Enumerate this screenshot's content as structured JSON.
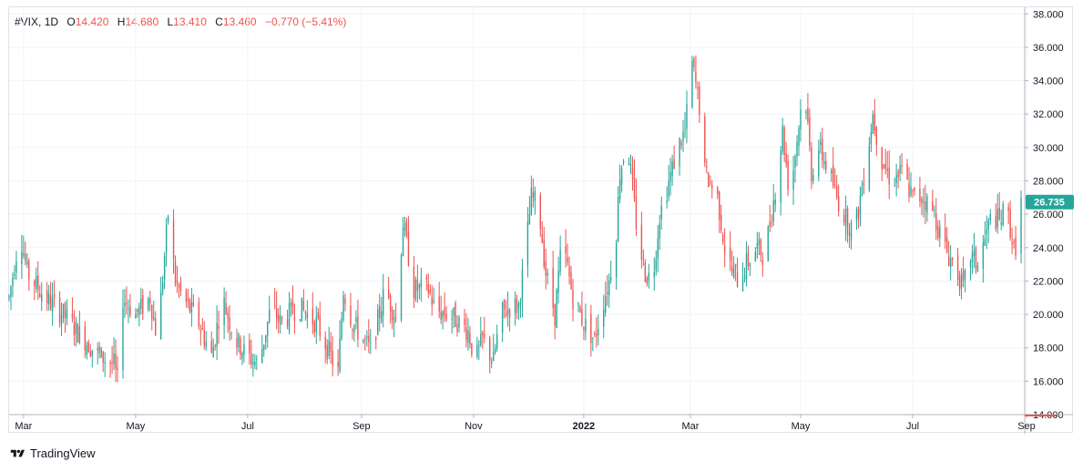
{
  "legend": {
    "symbol": "#VIX",
    "interval": "1D",
    "open_label": "O",
    "open": "14.420",
    "high_label": "H",
    "high": "14.680",
    "low_label": "L",
    "low": "13.410",
    "close_label": "C",
    "close": "13.460",
    "change": "−0.770 (−5.41%)"
  },
  "brand": {
    "name": "TradingView"
  },
  "colors": {
    "up": "#26a69a",
    "down": "#ef5350",
    "grid": "#f0f3fa",
    "axis": "#b2b5be",
    "text": "#131722"
  },
  "chart_data": {
    "type": "candlestick",
    "series_name": "#VIX",
    "interval": "1D",
    "last_price_label": "26.735",
    "current_price_label": "14.000",
    "y_axis": {
      "range": [
        14,
        38.4
      ],
      "ticks": [
        "14.000",
        "16.000",
        "18.000",
        "20.000",
        "22.000",
        "24.000",
        "26.000",
        "28.000",
        "30.000",
        "32.000",
        "34.000",
        "36.000",
        "38.000"
      ]
    },
    "x_axis": {
      "labels": [
        {
          "label": "Mar",
          "day": 8,
          "bold": false
        },
        {
          "label": "May",
          "day": 70,
          "bold": false
        },
        {
          "label": "Jul",
          "day": 132,
          "bold": false
        },
        {
          "label": "Sep",
          "day": 195,
          "bold": false
        },
        {
          "label": "Nov",
          "day": 257,
          "bold": false
        },
        {
          "label": "2022",
          "day": 318,
          "bold": true
        },
        {
          "label": "Mar",
          "day": 377,
          "bold": false
        },
        {
          "label": "May",
          "day": 438,
          "bold": false
        },
        {
          "label": "Jul",
          "day": 500,
          "bold": false
        },
        {
          "label": "Sep",
          "day": 563,
          "bold": false
        }
      ]
    },
    "candles_path_approx": [
      [
        0,
        21.0
      ],
      [
        6,
        25.0
      ],
      [
        10,
        22.5
      ],
      [
        20,
        21.0
      ],
      [
        30,
        20.0
      ],
      [
        40,
        18.7
      ],
      [
        50,
        17.5
      ],
      [
        58,
        17.0
      ],
      [
        60,
        16.0
      ],
      [
        63,
        21.0
      ],
      [
        70,
        20.0
      ],
      [
        78,
        21.0
      ],
      [
        82,
        18.5
      ],
      [
        88,
        26.0
      ],
      [
        92,
        22.0
      ],
      [
        96,
        21.0
      ],
      [
        105,
        19.5
      ],
      [
        112,
        17.5
      ],
      [
        118,
        21.0
      ],
      [
        125,
        18.5
      ],
      [
        132,
        17.5
      ],
      [
        138,
        17.0
      ],
      [
        145,
        20.5
      ],
      [
        150,
        19.5
      ],
      [
        160,
        20.5
      ],
      [
        170,
        19.5
      ],
      [
        178,
        17.5
      ],
      [
        182,
        16.5
      ],
      [
        185,
        21.5
      ],
      [
        190,
        19.5
      ],
      [
        196,
        18.5
      ],
      [
        200,
        17.8
      ],
      [
        208,
        21.5
      ],
      [
        214,
        19.8
      ],
      [
        218,
        25.5
      ],
      [
        224,
        21.5
      ],
      [
        232,
        21.5
      ],
      [
        236,
        20.2
      ],
      [
        244,
        20.0
      ],
      [
        254,
        19.0
      ],
      [
        258,
        17.2
      ],
      [
        262,
        18.5
      ],
      [
        268,
        17.2
      ],
      [
        272,
        20.0
      ],
      [
        278,
        20.5
      ],
      [
        282,
        20.5
      ],
      [
        286,
        24.0
      ],
      [
        289,
        27.0
      ],
      [
        293,
        26.5
      ],
      [
        297,
        22.5
      ],
      [
        302,
        20.0
      ],
      [
        306,
        24.5
      ],
      [
        312,
        21.0
      ],
      [
        318,
        19.5
      ],
      [
        324,
        18.5
      ],
      [
        328,
        20.5
      ],
      [
        332,
        22.0
      ],
      [
        336,
        25.0
      ],
      [
        338,
        28.5
      ],
      [
        342,
        30.5
      ],
      [
        348,
        24.5
      ],
      [
        352,
        22.5
      ],
      [
        356,
        22.0
      ],
      [
        360,
        26.0
      ],
      [
        364,
        27.5
      ],
      [
        370,
        30.0
      ],
      [
        374,
        31.0
      ],
      [
        378,
        35.0
      ],
      [
        382,
        32.5
      ],
      [
        385,
        28.5
      ],
      [
        392,
        27.0
      ],
      [
        396,
        24.0
      ],
      [
        400,
        22.5
      ],
      [
        404,
        22.0
      ],
      [
        408,
        23.0
      ],
      [
        414,
        24.0
      ],
      [
        418,
        23.5
      ],
      [
        424,
        27.5
      ],
      [
        428,
        31.0
      ],
      [
        432,
        27.0
      ],
      [
        436,
        30.5
      ],
      [
        440,
        34.0
      ],
      [
        444,
        28.5
      ],
      [
        448,
        30.0
      ],
      [
        454,
        28.5
      ],
      [
        458,
        27.0
      ],
      [
        464,
        25.5
      ],
      [
        468,
        25.0
      ],
      [
        474,
        29.0
      ],
      [
        478,
        32.0
      ],
      [
        482,
        29.5
      ],
      [
        488,
        28.0
      ],
      [
        494,
        28.5
      ],
      [
        500,
        27.0
      ],
      [
        506,
        27.0
      ],
      [
        512,
        26.0
      ],
      [
        516,
        24.5
      ],
      [
        520,
        23.5
      ],
      [
        524,
        22.8
      ],
      [
        528,
        21.5
      ],
      [
        532,
        23.5
      ],
      [
        536,
        23.0
      ],
      [
        540,
        24.5
      ],
      [
        544,
        26.0
      ],
      [
        548,
        25.5
      ],
      [
        552,
        26.5
      ],
      [
        556,
        23.8
      ],
      [
        558,
        24.5
      ],
      [
        560,
        26.7
      ]
    ]
  }
}
